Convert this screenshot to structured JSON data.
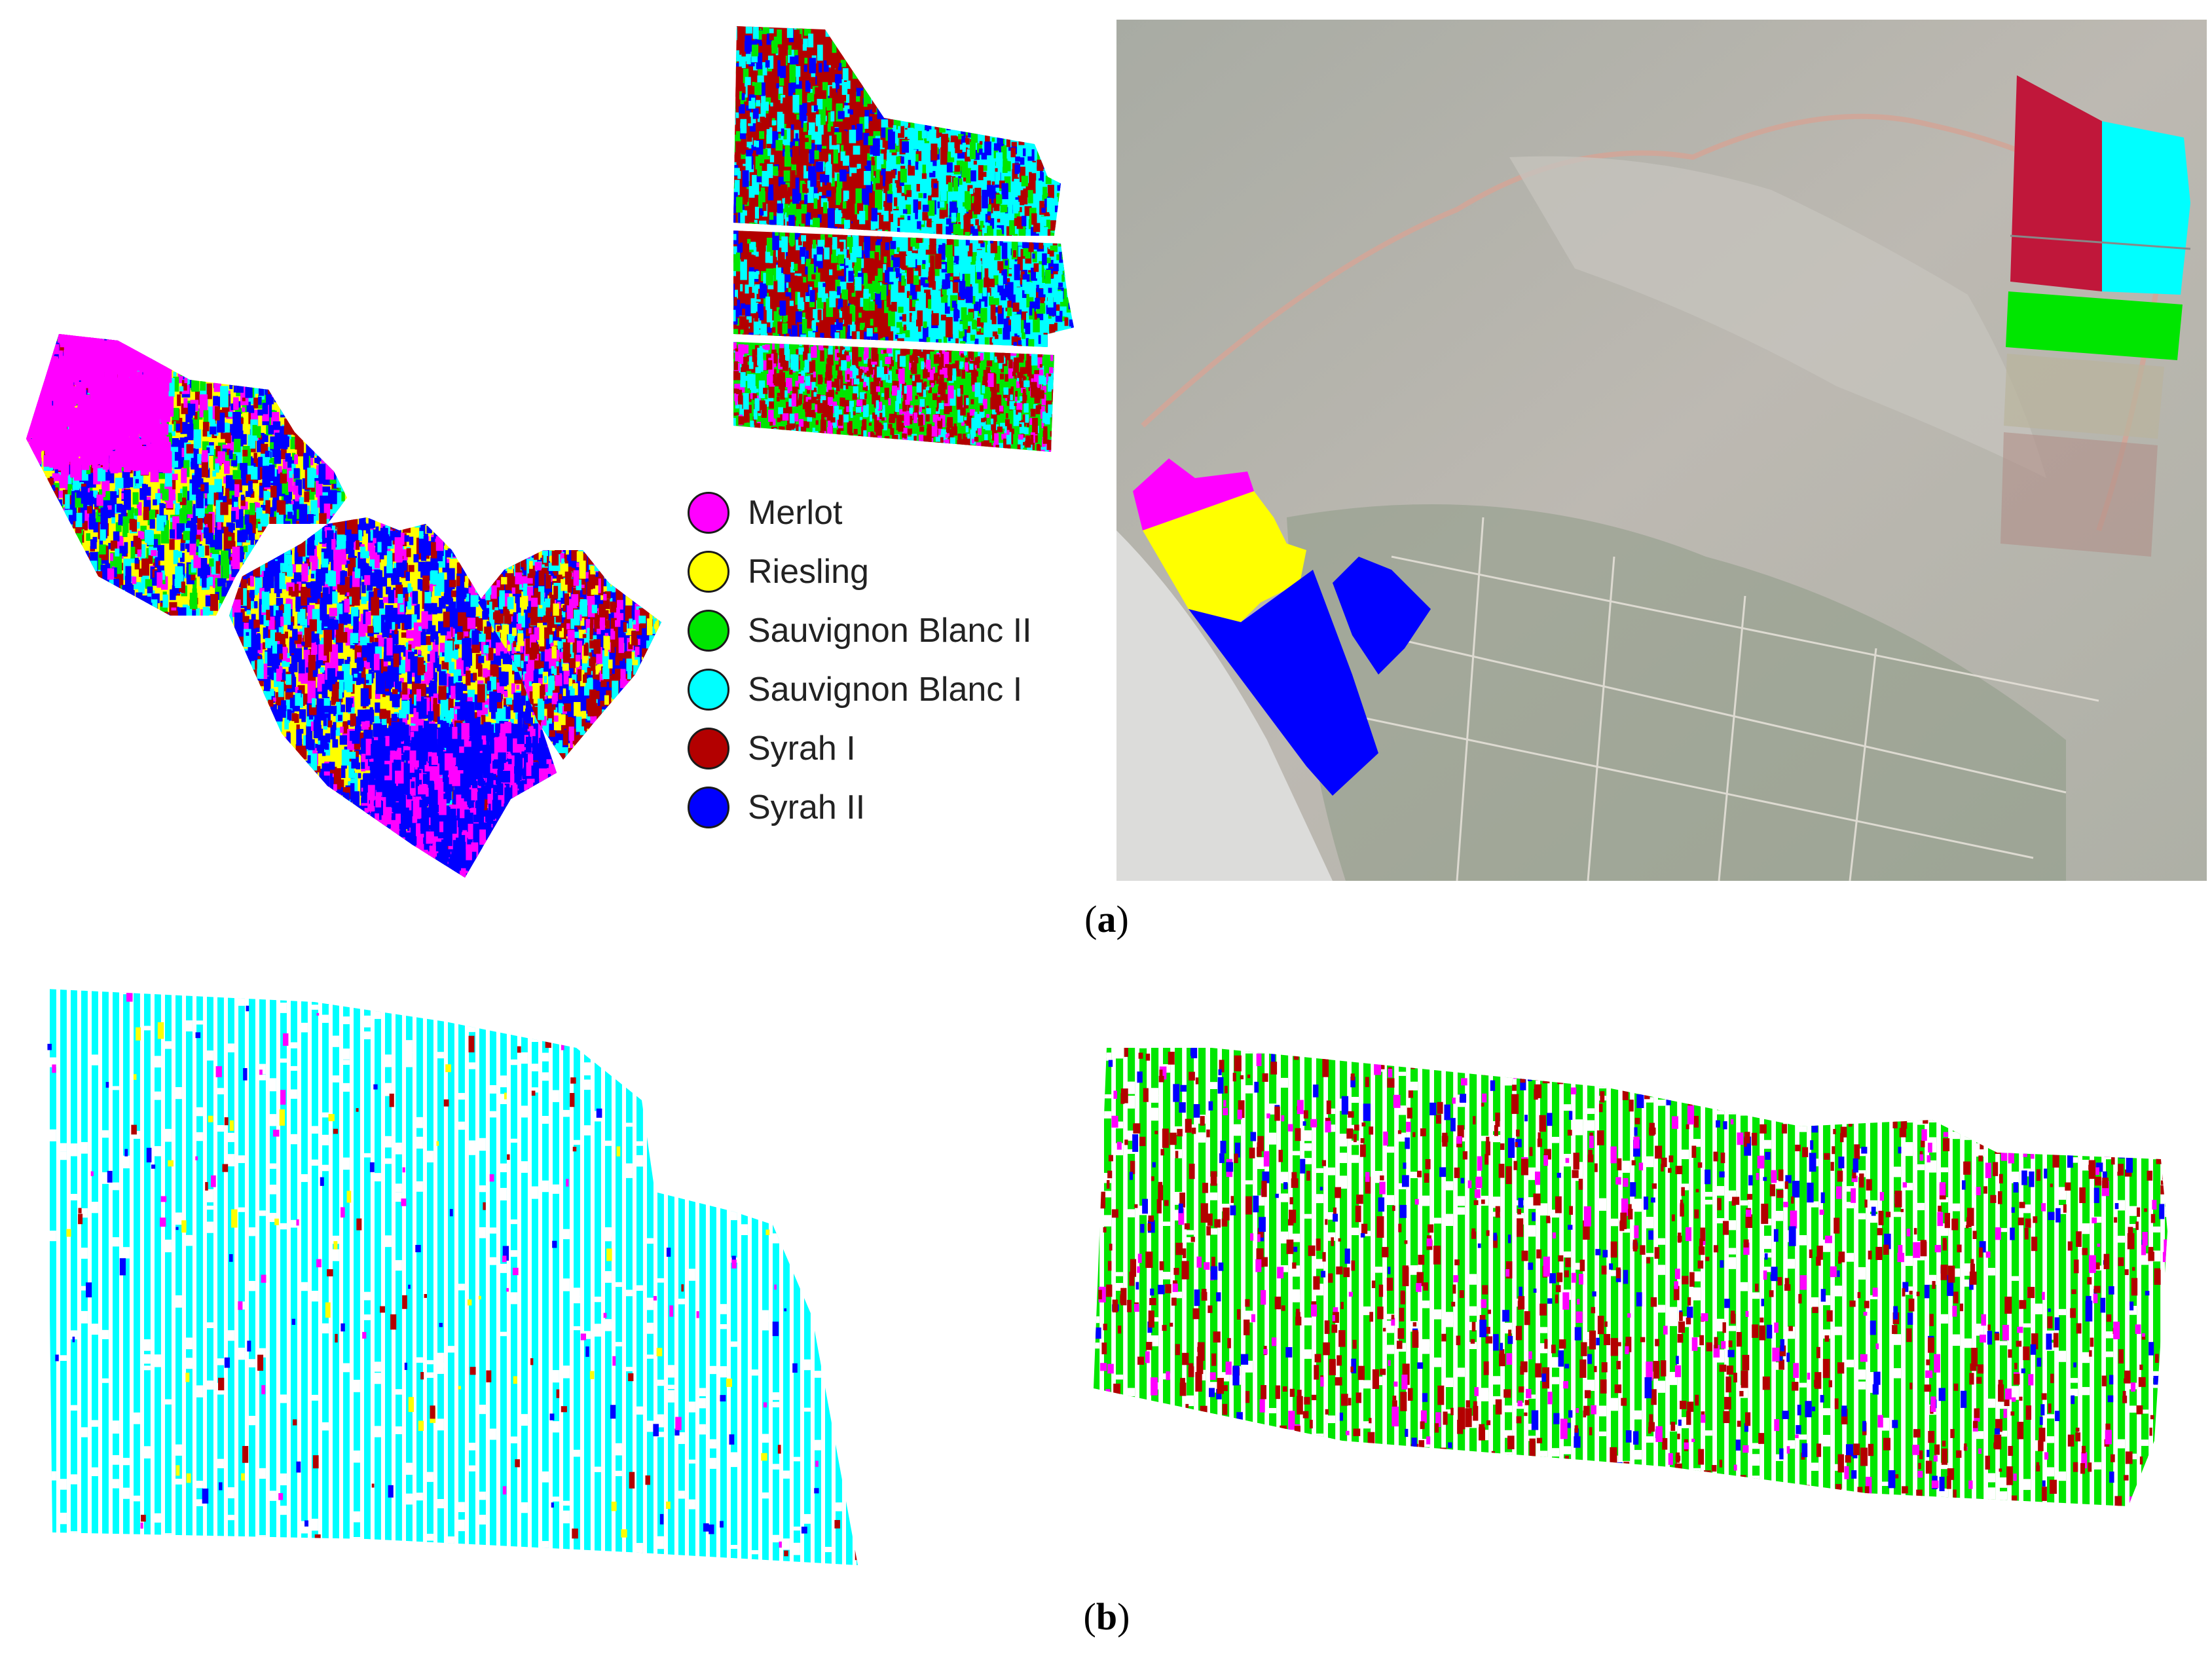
{
  "legend": {
    "items": [
      {
        "label": "Merlot",
        "color": "#ff00ff"
      },
      {
        "label": "Riesling",
        "color": "#ffff00"
      },
      {
        "label": "Sauvignon Blanc II",
        "color": "#00e600"
      },
      {
        "label": "Sauvignon Blanc I",
        "color": "#00ffff"
      },
      {
        "label": "Syrah I",
        "color": "#b30000"
      },
      {
        "label": "Syrah II",
        "color": "#0000ff"
      }
    ]
  },
  "captions": {
    "a": {
      "open": "(",
      "letter": "a",
      "close": ")"
    },
    "b": {
      "open": "(",
      "letter": "b",
      "close": ")"
    }
  },
  "colors": {
    "merlot": "#ff00ff",
    "riesling": "#ffff00",
    "sauvignon_blanc_ii": "#00e600",
    "sauvignon_blanc_i": "#00ffff",
    "syrah_i": "#b30000",
    "syrah_ii": "#0000ff",
    "satellite_base": "#b9b6b0"
  }
}
